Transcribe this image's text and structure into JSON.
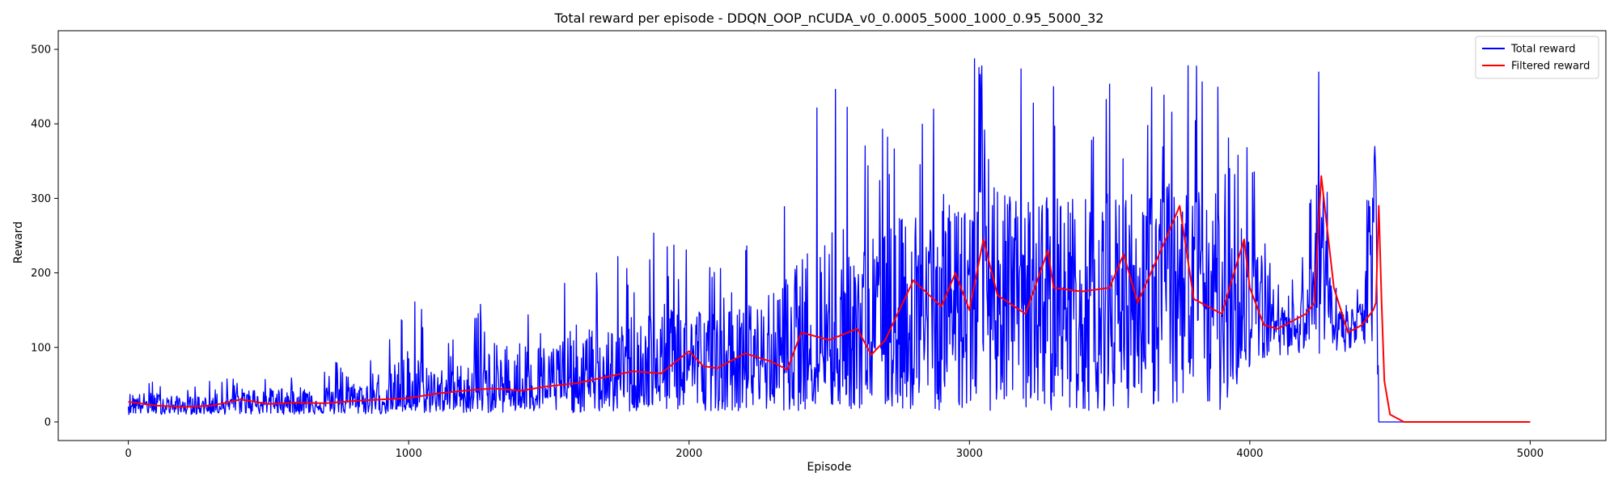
{
  "chart_data": {
    "type": "line",
    "title": "Total reward per episode - DDQN_OOP_nCUDA_v0_0.0005_5000_1000_0.95_5000_32",
    "xlabel": "Episode",
    "ylabel": "Reward",
    "xlim": [
      -250,
      5270
    ],
    "ylim": [
      -25,
      525
    ],
    "xticks": [
      0,
      1000,
      2000,
      3000,
      4000,
      5000
    ],
    "yticks": [
      0,
      100,
      200,
      300,
      400,
      500
    ],
    "grid": false,
    "legend_position": "top-right",
    "series": [
      {
        "name": "Total reward",
        "color": "#0000ff",
        "x": [
          0,
          100,
          200,
          300,
          400,
          500,
          600,
          700,
          800,
          900,
          1000,
          1100,
          1200,
          1300,
          1400,
          1500,
          1600,
          1700,
          1800,
          1900,
          2000,
          2100,
          2200,
          2300,
          2400,
          2500,
          2600,
          2700,
          2800,
          2900,
          3000,
          3100,
          3200,
          3300,
          3400,
          3500,
          3600,
          3700,
          3800,
          3900,
          4000,
          4100,
          4200,
          4250,
          4300,
          4350,
          4400,
          4450,
          4460,
          4500,
          5000
        ],
        "y": [
          25,
          22,
          20,
          21,
          28,
          25,
          26,
          24,
          27,
          28,
          30,
          34,
          38,
          40,
          43,
          45,
          50,
          55,
          62,
          65,
          85,
          70,
          80,
          88,
          95,
          105,
          110,
          120,
          125,
          145,
          170,
          165,
          150,
          160,
          155,
          150,
          165,
          180,
          170,
          175,
          165,
          130,
          140,
          250,
          120,
          125,
          140,
          300,
          0,
          0,
          0
        ],
        "min": [
          10,
          10,
          10,
          10,
          10,
          10,
          10,
          10,
          10,
          10,
          12,
          12,
          12,
          12,
          12,
          12,
          12,
          12,
          12,
          15,
          15,
          15,
          15,
          15,
          15,
          15,
          15,
          15,
          15,
          15,
          15,
          15,
          15,
          15,
          15,
          15,
          20,
          20,
          12,
          15,
          70,
          90,
          90,
          90,
          90,
          90,
          100,
          100,
          0,
          0,
          0
        ],
        "max": [
          55,
          60,
          50,
          55,
          65,
          70,
          75,
          80,
          85,
          90,
          185,
          120,
          130,
          185,
          195,
          170,
          230,
          200,
          250,
          270,
          260,
          240,
          250,
          280,
          370,
          500,
          400,
          430,
          490,
          500,
          500,
          500,
          480,
          500,
          480,
          500,
          500,
          500,
          500,
          460,
          400,
          200,
          240,
          500,
          200,
          180,
          190,
          500,
          0,
          0,
          0
        ]
      },
      {
        "name": "Filtered reward",
        "color": "#ff0000",
        "x": [
          0,
          100,
          200,
          300,
          400,
          500,
          600,
          700,
          800,
          900,
          1000,
          1100,
          1200,
          1300,
          1400,
          1500,
          1600,
          1700,
          1800,
          1900,
          2000,
          2050,
          2100,
          2200,
          2300,
          2350,
          2400,
          2500,
          2600,
          2650,
          2700,
          2800,
          2900,
          2950,
          3000,
          3050,
          3100,
          3200,
          3280,
          3300,
          3400,
          3500,
          3550,
          3600,
          3700,
          3750,
          3800,
          3900,
          3980,
          4000,
          4050,
          4100,
          4200,
          4230,
          4255,
          4300,
          4350,
          4400,
          4440,
          4450,
          4460,
          4470,
          4480,
          4500,
          4550,
          5000
        ],
        "y": [
          27,
          22,
          20,
          22,
          30,
          24,
          26,
          25,
          28,
          30,
          32,
          38,
          42,
          45,
          42,
          48,
          52,
          60,
          68,
          65,
          95,
          75,
          72,
          92,
          80,
          70,
          120,
          110,
          125,
          90,
          110,
          190,
          155,
          200,
          150,
          245,
          170,
          145,
          230,
          180,
          175,
          180,
          225,
          160,
          245,
          290,
          165,
          145,
          245,
          180,
          130,
          125,
          145,
          160,
          330,
          180,
          120,
          130,
          150,
          160,
          290,
          160,
          55,
          10,
          0,
          0
        ]
      }
    ]
  }
}
